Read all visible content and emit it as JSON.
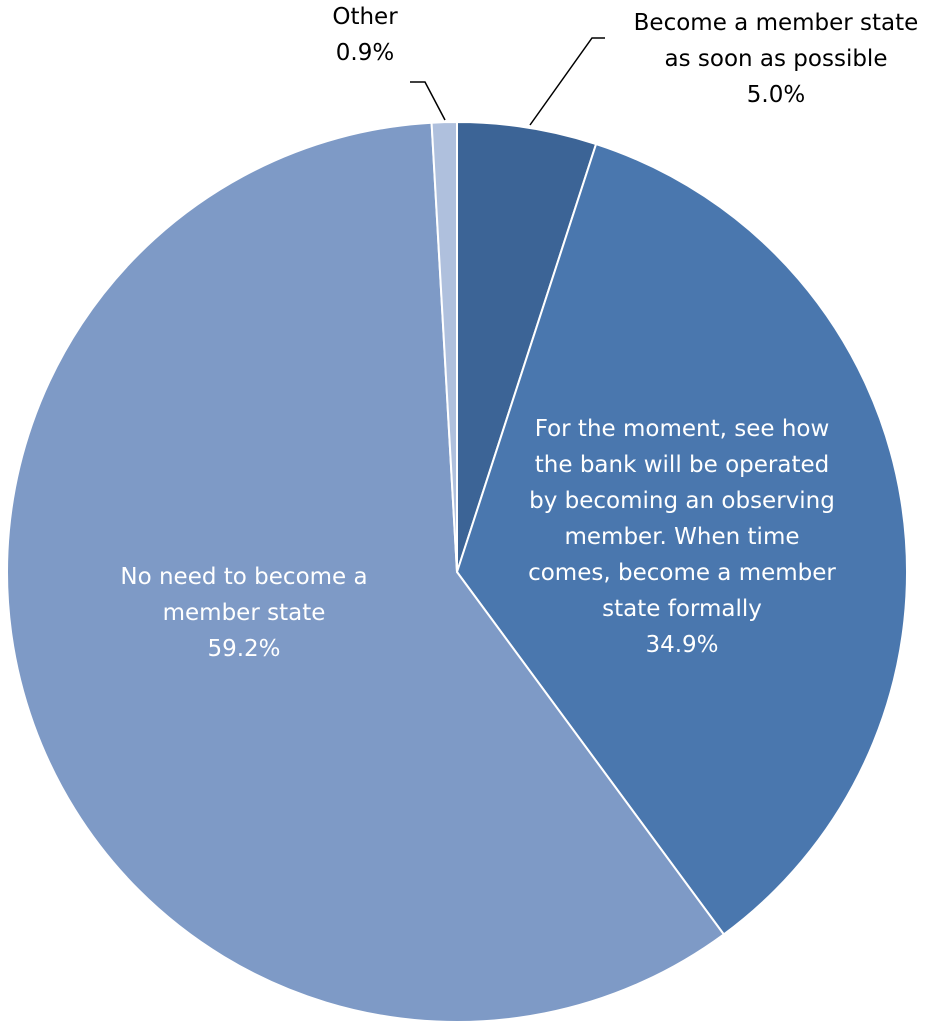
{
  "chart_data": {
    "type": "pie",
    "start_angle_deg": 0,
    "direction": "clockwise",
    "slices": [
      {
        "label_lines": [
          "Become a member state",
          "as soon as possible"
        ],
        "value_label": "5.0%",
        "value": 5.0,
        "color": "#3C6496"
      },
      {
        "label_lines": [
          "For the moment, see how",
          "the bank will be operated",
          "by becoming an observing",
          "member. When time",
          "comes, become a member",
          "state formally"
        ],
        "value_label": "34.9%",
        "value": 34.9,
        "color": "#4A77AE"
      },
      {
        "label_lines": [
          "No need to become a",
          "member state"
        ],
        "value_label": "59.2%",
        "value": 59.2,
        "color": "#7E9AC6"
      },
      {
        "label_lines": [
          "Other"
        ],
        "value_label": "0.9%",
        "value": 0.9,
        "color": "#AFC0DD"
      }
    ],
    "label_colors": {
      "inside": "#ffffff",
      "outside": "#000000",
      "leader": "#000000"
    }
  }
}
